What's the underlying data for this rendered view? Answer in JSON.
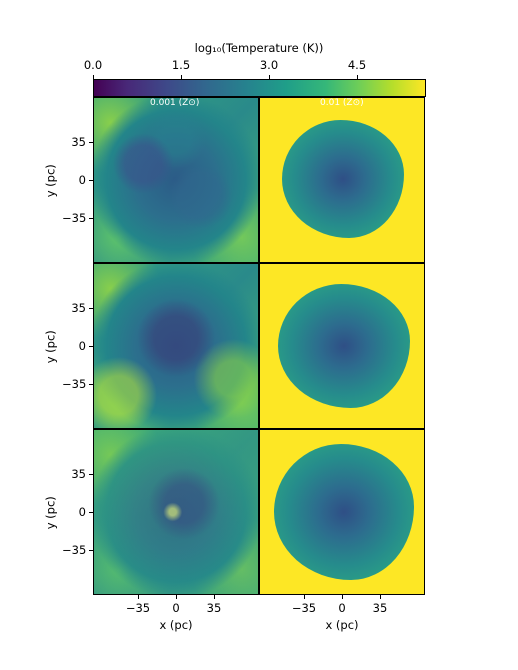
{
  "colorbar": {
    "label": "log₁₀(Temperature (K))",
    "ticks": [
      "0.0",
      "1.5",
      "3.0",
      "4.5"
    ],
    "colors": [
      "#440154",
      "#3e4989",
      "#26828e",
      "#35b779",
      "#fde725"
    ]
  },
  "columns": [
    {
      "label": "0.001 (Z⊙)"
    },
    {
      "label": "0.01 (Z⊙)"
    }
  ],
  "y_axis": {
    "label": "y (pc)",
    "ticks": [
      "35",
      "0",
      "−35"
    ]
  },
  "x_axis": {
    "label": "x (pc)",
    "ticks": [
      "−35",
      "0",
      "35"
    ]
  }
}
